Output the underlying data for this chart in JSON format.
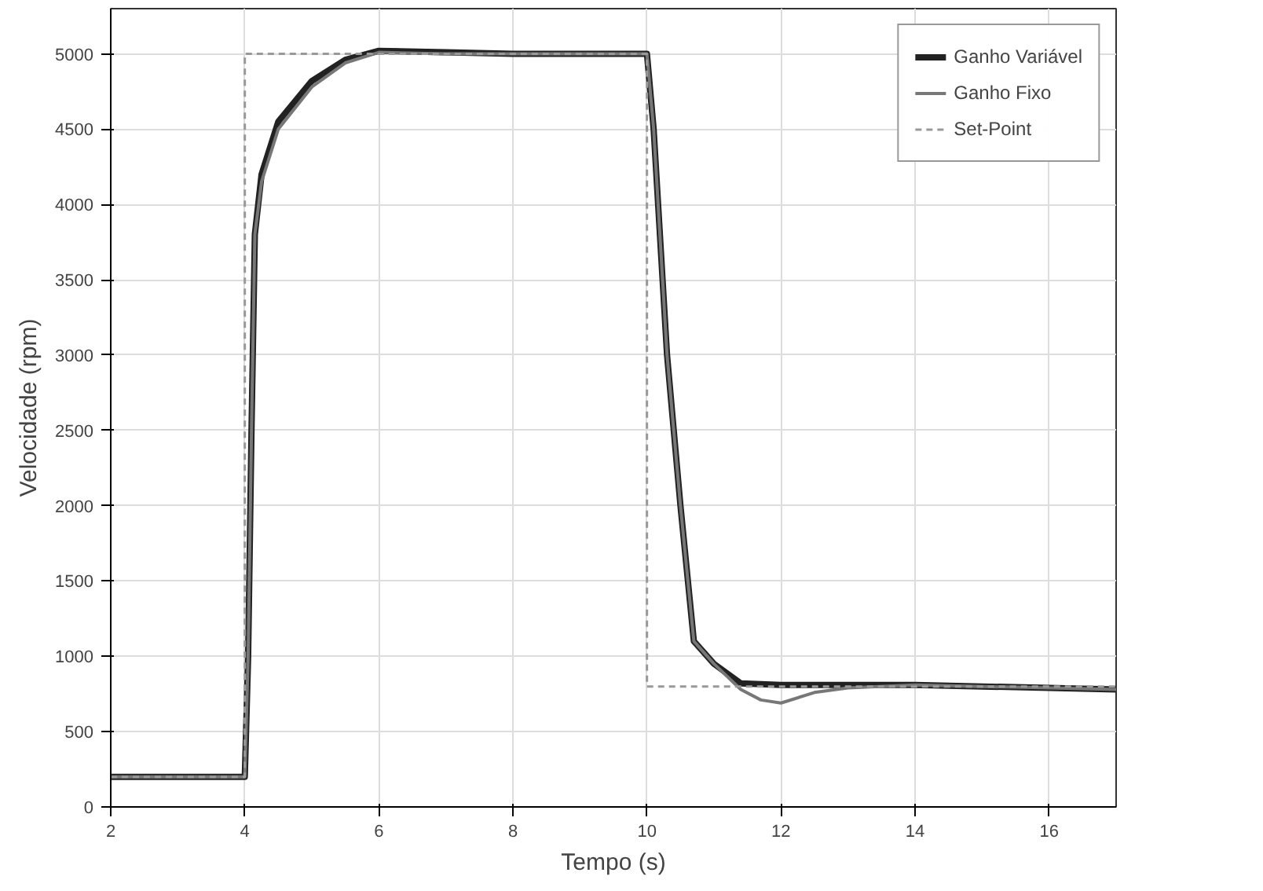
{
  "chart_data": {
    "type": "line",
    "xlabel": "Tempo (s)",
    "ylabel": "Velocidade (rpm)",
    "xlim": [
      2,
      17
    ],
    "ylim": [
      0,
      5300
    ],
    "xticks": [
      2,
      4,
      6,
      8,
      10,
      12,
      14,
      16
    ],
    "yticks": [
      0,
      500,
      1000,
      1500,
      2000,
      2500,
      3000,
      3500,
      4000,
      4500,
      5000
    ],
    "grid": true,
    "legend": "top right",
    "series": [
      {
        "name": "Ganho Variável",
        "color": "#222222",
        "x": [
          2,
          3,
          4,
          4.05,
          4.1,
          4.15,
          4.25,
          4.5,
          5,
          5.5,
          6,
          7,
          8,
          9,
          10,
          10.1,
          10.3,
          10.5,
          10.7,
          11,
          11.4,
          12,
          13,
          14,
          15,
          16,
          17
        ],
        "values": [
          200,
          200,
          200,
          1000,
          2500,
          3800,
          4200,
          4550,
          4820,
          4960,
          5020,
          5010,
          5000,
          5000,
          5000,
          4500,
          3000,
          2000,
          1100,
          950,
          820,
          810,
          810,
          810,
          800,
          790,
          780
        ]
      },
      {
        "name": "Ganho Fixo",
        "color": "#777777",
        "x": [
          2,
          3,
          4,
          4.05,
          4.1,
          4.15,
          4.25,
          4.5,
          5,
          5.5,
          6,
          7,
          8,
          9,
          10,
          10.1,
          10.3,
          10.5,
          10.7,
          11,
          11.4,
          11.7,
          12,
          12.5,
          13,
          14,
          15,
          16,
          17
        ],
        "values": [
          200,
          200,
          200,
          1000,
          2500,
          3800,
          4150,
          4500,
          4780,
          4940,
          5010,
          5000,
          5000,
          5000,
          5000,
          4500,
          3000,
          2000,
          1100,
          950,
          780,
          710,
          690,
          760,
          790,
          810,
          800,
          790,
          780
        ]
      },
      {
        "name": "Set-Point",
        "color": "#999999",
        "line_style": "dashed",
        "x": [
          2,
          4,
          4,
          10,
          10,
          17
        ],
        "values": [
          200,
          200,
          5000,
          5000,
          800,
          800
        ]
      }
    ]
  }
}
